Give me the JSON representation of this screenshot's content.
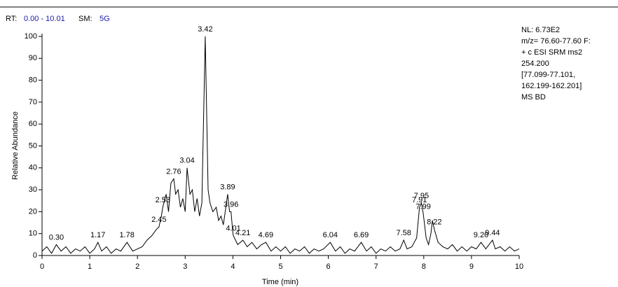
{
  "chart_data": {
    "type": "line",
    "header": {
      "rt_label": "RT:",
      "rt_range": "0.00 - 10.01",
      "sm_label": "SM:",
      "sm_value": "5G"
    },
    "info": [
      "NL: 6.73E2",
      "m/z= 76.60-77.60 F:",
      "+ c ESI SRM ms2",
      "254.200",
      "[77.099-77.101,",
      "162.199-162.201]",
      "MS BD"
    ],
    "x_label": "Time (min)",
    "y_label": "Relative Abundance",
    "xlim": [
      0,
      10
    ],
    "ylim": [
      0,
      100
    ],
    "xticks": [
      0,
      1,
      2,
      3,
      4,
      5,
      6,
      7,
      8,
      9,
      10
    ],
    "yticks": [
      0,
      10,
      20,
      30,
      40,
      50,
      60,
      70,
      80,
      90,
      100
    ],
    "color": "#000000",
    "x": [
      0,
      0.1,
      0.2,
      0.3,
      0.4,
      0.5,
      0.6,
      0.7,
      0.8,
      0.9,
      1.0,
      1.1,
      1.17,
      1.25,
      1.35,
      1.45,
      1.55,
      1.65,
      1.78,
      1.9,
      2.0,
      2.1,
      2.2,
      2.3,
      2.4,
      2.45,
      2.5,
      2.53,
      2.6,
      2.65,
      2.7,
      2.76,
      2.8,
      2.85,
      2.9,
      2.95,
      3.0,
      3.04,
      3.1,
      3.15,
      3.2,
      3.25,
      3.3,
      3.35,
      3.42,
      3.48,
      3.52,
      3.58,
      3.65,
      3.7,
      3.75,
      3.8,
      3.89,
      3.93,
      3.96,
      4.0,
      4.01,
      4.1,
      4.21,
      4.3,
      4.4,
      4.5,
      4.6,
      4.69,
      4.8,
      4.9,
      5.0,
      5.1,
      5.2,
      5.3,
      5.4,
      5.5,
      5.6,
      5.7,
      5.8,
      5.9,
      6.04,
      6.15,
      6.25,
      6.35,
      6.45,
      6.55,
      6.69,
      6.8,
      6.9,
      7.0,
      7.1,
      7.2,
      7.3,
      7.4,
      7.5,
      7.58,
      7.65,
      7.75,
      7.85,
      7.91,
      7.95,
      7.99,
      8.05,
      8.1,
      8.15,
      8.18,
      8.22,
      8.3,
      8.4,
      8.5,
      8.6,
      8.7,
      8.8,
      8.9,
      9.0,
      9.1,
      9.2,
      9.3,
      9.44,
      9.5,
      9.6,
      9.7,
      9.8,
      9.9,
      10.0
    ],
    "values": [
      2,
      4,
      1,
      5,
      2,
      4,
      1,
      3,
      2,
      4,
      1,
      3,
      6,
      2,
      4,
      1,
      3,
      2,
      6,
      2,
      3,
      4,
      7,
      9,
      12,
      13,
      18,
      22,
      28,
      20,
      33,
      35,
      28,
      30,
      22,
      26,
      20,
      40,
      28,
      30,
      20,
      26,
      18,
      24,
      100,
      30,
      24,
      20,
      22,
      16,
      18,
      14,
      28,
      20,
      20,
      10,
      9,
      5,
      7,
      4,
      6,
      3,
      5,
      6,
      2,
      4,
      2,
      4,
      1,
      3,
      2,
      4,
      1,
      3,
      2,
      3,
      6,
      2,
      4,
      1,
      3,
      2,
      6,
      2,
      4,
      1,
      3,
      2,
      4,
      2,
      3,
      7,
      3,
      4,
      8,
      22,
      24,
      19,
      8,
      5,
      10,
      16,
      12,
      6,
      4,
      3,
      5,
      2,
      4,
      2,
      4,
      3,
      6,
      3,
      7,
      3,
      4,
      2,
      4,
      2,
      3
    ],
    "annotations": [
      {
        "x": 0.3,
        "y": 5,
        "label": "0.30"
      },
      {
        "x": 1.17,
        "y": 6,
        "label": "1.17"
      },
      {
        "x": 1.78,
        "y": 6,
        "label": "1.78"
      },
      {
        "x": 2.45,
        "y": 13,
        "label": "2.45"
      },
      {
        "x": 2.53,
        "y": 22,
        "label": "2.53"
      },
      {
        "x": 2.76,
        "y": 35,
        "label": "2.76"
      },
      {
        "x": 3.04,
        "y": 40,
        "label": "3.04"
      },
      {
        "x": 3.42,
        "y": 100,
        "label": "3.42"
      },
      {
        "x": 3.89,
        "y": 28,
        "label": "3.89"
      },
      {
        "x": 3.96,
        "y": 20,
        "label": "3.96"
      },
      {
        "x": 4.01,
        "y": 9,
        "label": "4.01"
      },
      {
        "x": 4.21,
        "y": 7,
        "label": "4.21"
      },
      {
        "x": 4.69,
        "y": 6,
        "label": "4.69"
      },
      {
        "x": 6.04,
        "y": 6,
        "label": "6.04"
      },
      {
        "x": 6.69,
        "y": 6,
        "label": "6.69"
      },
      {
        "x": 7.58,
        "y": 7,
        "label": "7.58"
      },
      {
        "x": 7.91,
        "y": 22,
        "label": "7.91"
      },
      {
        "x": 7.95,
        "y": 24,
        "label": "7.95"
      },
      {
        "x": 7.99,
        "y": 19,
        "label": "7.99"
      },
      {
        "x": 8.22,
        "y": 12,
        "label": "8.22"
      },
      {
        "x": 9.2,
        "y": 6,
        "label": "9.20"
      },
      {
        "x": 9.44,
        "y": 7,
        "label": "9.44"
      }
    ]
  }
}
